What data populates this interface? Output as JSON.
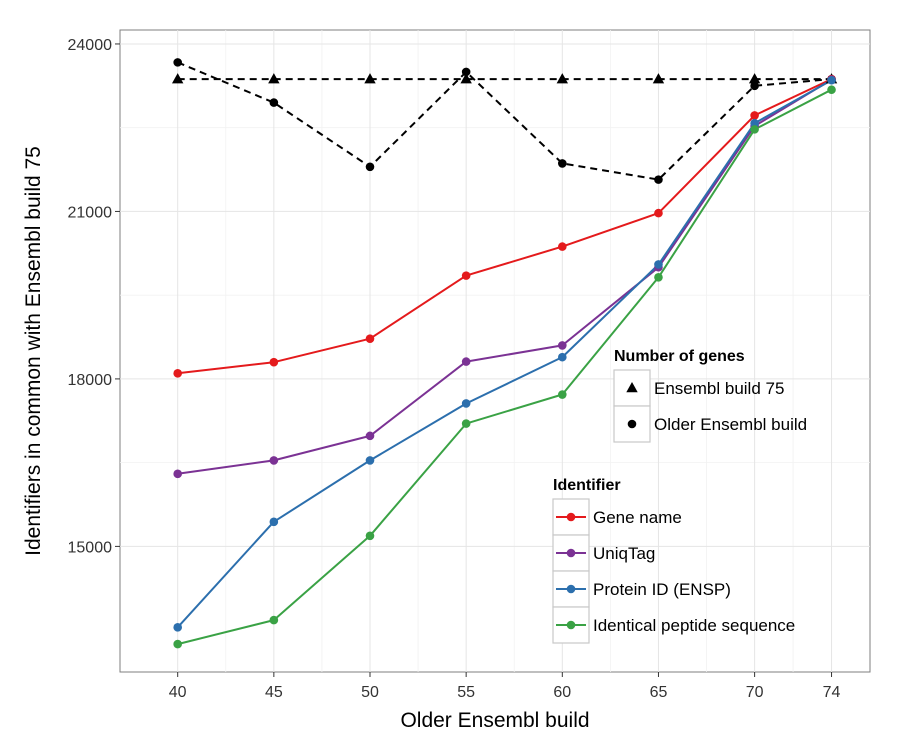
{
  "chart_data": {
    "type": "line",
    "title": "",
    "xlabel": "Older Ensembl build",
    "ylabel": "Identifiers in common with Ensembl build 75",
    "x": [
      "40",
      "45",
      "50",
      "55",
      "60",
      "65",
      "70",
      "74"
    ],
    "yticks": [
      15000,
      18000,
      21000,
      24000
    ],
    "ylim": [
      12750,
      24250
    ],
    "grid": true,
    "series": [
      {
        "name": "Gene name",
        "group": "identifier",
        "color": "#e41a1c",
        "style": "solid",
        "marker": "circle",
        "values": [
          18100,
          18300,
          18720,
          19850,
          20370,
          20970,
          22720,
          23370
        ]
      },
      {
        "name": "UniqTag",
        "group": "identifier",
        "color": "#7b3294",
        "style": "solid",
        "marker": "circle",
        "values": [
          16300,
          16540,
          16980,
          18310,
          18600,
          20000,
          22530,
          23360
        ]
      },
      {
        "name": "Protein ID (ENSP)",
        "group": "identifier",
        "color": "#2c6fad",
        "style": "solid",
        "marker": "circle",
        "values": [
          13550,
          15440,
          16540,
          17560,
          18390,
          20050,
          22580,
          23350
        ]
      },
      {
        "name": "Identical peptide sequence",
        "group": "identifier",
        "color": "#3aa245",
        "style": "solid",
        "marker": "circle",
        "values": [
          13250,
          13680,
          15190,
          17200,
          17720,
          19820,
          22470,
          23180
        ]
      },
      {
        "name": "Ensembl build 75",
        "group": "genes",
        "color": "#000000",
        "style": "dashed",
        "marker": "triangle",
        "values": [
          23370,
          23370,
          23370,
          23370,
          23370,
          23370,
          23370,
          23370
        ]
      },
      {
        "name": "Older Ensembl build",
        "group": "genes",
        "color": "#000000",
        "style": "dashed",
        "marker": "circle",
        "values": [
          23670,
          22950,
          21800,
          23500,
          21860,
          21570,
          23250,
          23370
        ]
      }
    ],
    "legends": [
      {
        "title": "Number of genes",
        "items": [
          "Ensembl build 75",
          "Older Ensembl build"
        ],
        "position": "center-right"
      },
      {
        "title": "Identifier",
        "items": [
          "Gene name",
          "UniqTag",
          "Protein ID (ENSP)",
          "Identical peptide sequence"
        ],
        "position": "bottom-right"
      }
    ]
  }
}
